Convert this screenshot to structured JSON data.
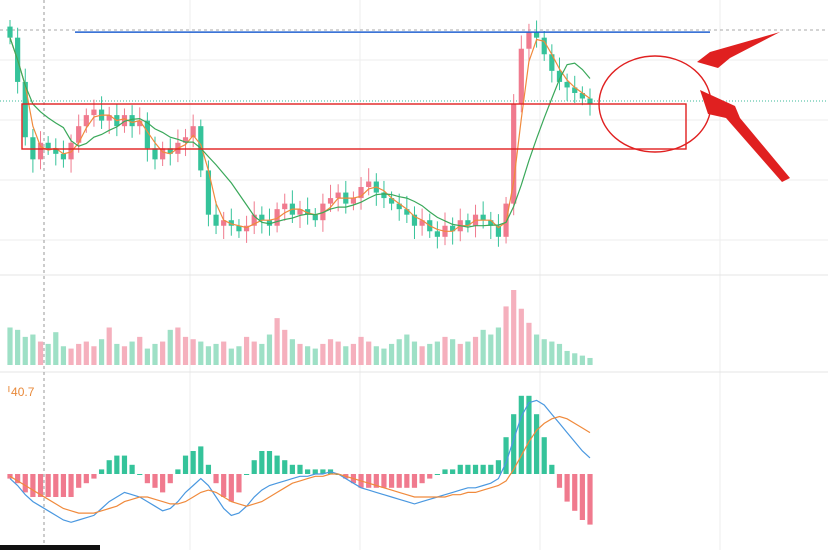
{
  "colors": {
    "up": "#f07a8e",
    "down": "#35c39a",
    "vol_up": "#f5b0bd",
    "vol_down": "#9ee0c6",
    "ma_short": "#f08a3c",
    "ma_long": "#3aa85a",
    "dif": "#4a98e0",
    "dea": "#f08a3c",
    "resistance": "#2060d0",
    "annotation": "#e02020",
    "grid": "#eeeeee"
  },
  "macd_label": "ᅵ40.7",
  "chart_data": [
    {
      "type": "candlestick",
      "panel": "price",
      "close": [
        10.0,
        9.6,
        9.1,
        8.9,
        9.05,
        9.0,
        8.95,
        8.9,
        9.05,
        9.2,
        9.3,
        9.35,
        9.25,
        9.3,
        9.2,
        9.3,
        9.2,
        9.25,
        9.0,
        8.9,
        9.0,
        8.95,
        9.05,
        9.1,
        9.2,
        8.8,
        8.4,
        8.3,
        8.35,
        8.3,
        8.25,
        8.3,
        8.4,
        8.35,
        8.3,
        8.45,
        8.5,
        8.4,
        8.45,
        8.4,
        8.35,
        8.5,
        8.55,
        8.6,
        8.5,
        8.55,
        8.65,
        8.7,
        8.6,
        8.55,
        8.5,
        8.45,
        8.4,
        8.3,
        8.35,
        8.25,
        8.2,
        8.3,
        8.25,
        8.35,
        8.3,
        8.4,
        8.35,
        8.3,
        8.2,
        8.5,
        9.4,
        9.9,
        10.05,
        10.0,
        9.85,
        9.7,
        9.6,
        9.55,
        9.5,
        9.45,
        9.4
      ],
      "volume": [
        1.6,
        1.5,
        1.2,
        1.3,
        1.0,
        0.9,
        1.4,
        0.8,
        0.7,
        0.9,
        1.0,
        0.8,
        1.1,
        1.6,
        0.9,
        0.8,
        1.0,
        1.2,
        0.7,
        0.9,
        1.0,
        1.5,
        1.6,
        1.2,
        1.1,
        1.0,
        0.8,
        0.9,
        1.0,
        0.7,
        0.8,
        1.2,
        1.0,
        0.9,
        1.3,
        2.0,
        1.5,
        1.1,
        0.9,
        0.8,
        0.7,
        0.9,
        1.1,
        1.0,
        0.8,
        0.9,
        1.2,
        1.0,
        0.8,
        0.7,
        0.9,
        1.1,
        1.3,
        1.0,
        0.8,
        0.9,
        1.0,
        1.2,
        1.1,
        0.9,
        1.0,
        1.2,
        1.5,
        1.3,
        1.6,
        2.5,
        3.2,
        2.4,
        1.8,
        1.3,
        1.1,
        1.0,
        0.9,
        0.6,
        0.5,
        0.4,
        0.3
      ],
      "resistance_level": 10.05
    },
    {
      "type": "line",
      "panel": "macd",
      "series": [
        {
          "values": [
            -0.02,
            -0.05,
            -0.09,
            -0.12,
            -0.14,
            -0.16,
            -0.18,
            -0.2,
            -0.21,
            -0.2,
            -0.19,
            -0.18,
            -0.15,
            -0.12,
            -0.1,
            -0.08,
            -0.09,
            -0.1,
            -0.12,
            -0.14,
            -0.16,
            -0.15,
            -0.12,
            -0.08,
            -0.05,
            -0.02,
            -0.05,
            -0.1,
            -0.15,
            -0.18,
            -0.17,
            -0.14,
            -0.1,
            -0.07,
            -0.05,
            -0.04,
            -0.03,
            -0.02,
            -0.01,
            -0.01,
            0.0,
            0.0,
            0.01,
            0.0,
            -0.02,
            -0.04,
            -0.06,
            -0.07,
            -0.08,
            -0.09,
            -0.1,
            -0.11,
            -0.12,
            -0.13,
            -0.12,
            -0.11,
            -0.1,
            -0.09,
            -0.08,
            -0.07,
            -0.06,
            -0.06,
            -0.05,
            -0.04,
            -0.02,
            0.05,
            0.15,
            0.25,
            0.31,
            0.32,
            0.3,
            0.26,
            0.22,
            0.18,
            0.14,
            0.1,
            0.07
          ]
        },
        {
          "values": [
            -0.01,
            -0.03,
            -0.05,
            -0.07,
            -0.09,
            -0.11,
            -0.13,
            -0.15,
            -0.16,
            -0.17,
            -0.17,
            -0.17,
            -0.16,
            -0.15,
            -0.14,
            -0.12,
            -0.11,
            -0.1,
            -0.1,
            -0.11,
            -0.12,
            -0.13,
            -0.13,
            -0.12,
            -0.1,
            -0.08,
            -0.07,
            -0.08,
            -0.1,
            -0.12,
            -0.13,
            -0.14,
            -0.13,
            -0.12,
            -0.1,
            -0.08,
            -0.06,
            -0.04,
            -0.03,
            -0.02,
            -0.01,
            -0.01,
            0.0,
            0.0,
            -0.01,
            -0.02,
            -0.03,
            -0.04,
            -0.05,
            -0.06,
            -0.07,
            -0.08,
            -0.09,
            -0.1,
            -0.1,
            -0.1,
            -0.1,
            -0.1,
            -0.09,
            -0.09,
            -0.08,
            -0.08,
            -0.07,
            -0.06,
            -0.05,
            -0.03,
            0.02,
            0.08,
            0.14,
            0.19,
            0.22,
            0.24,
            0.25,
            0.24,
            0.22,
            0.2,
            0.18
          ]
        }
      ]
    }
  ]
}
